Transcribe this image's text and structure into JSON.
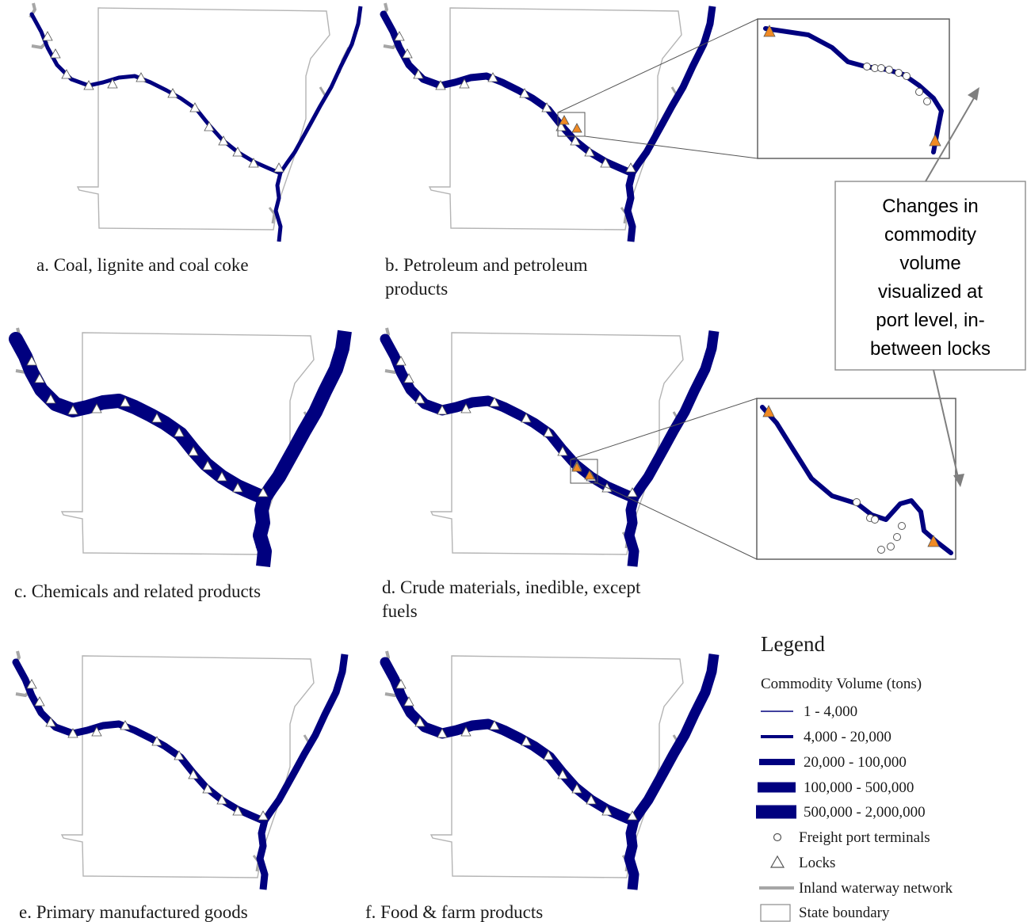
{
  "panels": [
    {
      "id": "a",
      "title_lines": [
        "a. Coal, lignite and coal coke"
      ],
      "volume_class": 2,
      "has_inset": false
    },
    {
      "id": "b",
      "title_lines": [
        "b. Petroleum and petroleum",
        "products"
      ],
      "volume_class": 3,
      "has_inset": true
    },
    {
      "id": "c",
      "title_lines": [
        "c. Chemicals and related products"
      ],
      "volume_class": 5,
      "has_inset": false
    },
    {
      "id": "d",
      "title_lines": [
        "d. Crude materials, inedible, except",
        "fuels"
      ],
      "volume_class": 4,
      "has_inset": true
    },
    {
      "id": "e",
      "title_lines": [
        "e. Primary manufactured goods"
      ],
      "volume_class": 3,
      "has_inset": false
    },
    {
      "id": "f",
      "title_lines": [
        "f. Food & farm products"
      ],
      "volume_class": 4,
      "has_inset": false
    }
  ],
  "callout": {
    "lines": [
      "Changes in",
      "commodity",
      "volume",
      "visualized at",
      "port level, in-",
      "between locks"
    ]
  },
  "legend": {
    "title": "Legend",
    "subtitle": "Commodity Volume (tons)",
    "volume_classes": [
      {
        "label": "1 - 4,000",
        "level": 1
      },
      {
        "label": "4,000 - 20,000",
        "level": 2
      },
      {
        "label": "20,000 - 100,000",
        "level": 3
      },
      {
        "label": "100,000 - 500,000",
        "level": 4
      },
      {
        "label": "500,000 - 2,000,000",
        "level": 5
      }
    ],
    "symbols": [
      {
        "label": "Freight port terminals",
        "icon": "circle-icon"
      },
      {
        "label": "Locks",
        "icon": "triangle-icon"
      },
      {
        "label": "Inland waterway network",
        "icon": "gray-line-icon"
      },
      {
        "label": "State boundary",
        "icon": "rectangle-icon"
      }
    ]
  },
  "colors": {
    "river": "#00007f",
    "waterway": "#a6a6a6",
    "state_boundary": "#b4b4b4",
    "lock_highlight": "#f08a24",
    "inset_border": "#555555"
  }
}
